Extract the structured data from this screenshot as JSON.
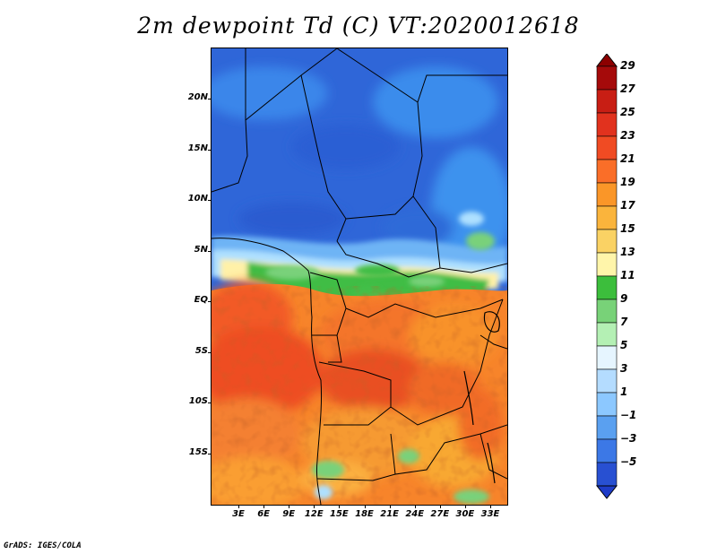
{
  "title": "2m dewpoint Td (C) VT:2020012618",
  "credit": "GrADS: IGES/COLA",
  "map": {
    "region": "Central Africa",
    "variable": "2m dewpoint",
    "units": "C",
    "valid_time": "2020012618",
    "lat_ticks": [
      {
        "label": "20N",
        "lat": 20
      },
      {
        "label": "15N",
        "lat": 15
      },
      {
        "label": "10N",
        "lat": 10
      },
      {
        "label": "5N",
        "lat": 5
      },
      {
        "label": "EQ",
        "lat": 0
      },
      {
        "label": "5S",
        "lat": -5
      },
      {
        "label": "10S",
        "lat": -10
      },
      {
        "label": "15S",
        "lat": -15
      }
    ],
    "lon_ticks": [
      {
        "label": "3E",
        "lon": 3
      },
      {
        "label": "6E",
        "lon": 6
      },
      {
        "label": "9E",
        "lon": 9
      },
      {
        "label": "12E",
        "lon": 12
      },
      {
        "label": "15E",
        "lon": 15
      },
      {
        "label": "18E",
        "lon": 18
      },
      {
        "label": "21E",
        "lon": 21
      },
      {
        "label": "24E",
        "lon": 24
      },
      {
        "label": "27E",
        "lon": 27
      },
      {
        "label": "30E",
        "lon": 30
      },
      {
        "label": "33E",
        "lon": 33
      }
    ]
  },
  "colorbar": {
    "levels": [
      {
        "label": "29",
        "value": 29,
        "color": "#a50a0a"
      },
      {
        "label": "27",
        "value": 27,
        "color": "#c81e14"
      },
      {
        "label": "25",
        "value": 25,
        "color": "#e1321e"
      },
      {
        "label": "23",
        "value": 23,
        "color": "#f04b23"
      },
      {
        "label": "21",
        "value": 21,
        "color": "#fa6e28"
      },
      {
        "label": "19",
        "value": 19,
        "color": "#fa9628"
      },
      {
        "label": "17",
        "value": 17,
        "color": "#fab43c"
      },
      {
        "label": "15",
        "value": 15,
        "color": "#fad264"
      },
      {
        "label": "13",
        "value": 13,
        "color": "#fff5aa"
      },
      {
        "label": "11",
        "value": 11,
        "color": "#3cbe3c"
      },
      {
        "label": "9",
        "value": 9,
        "color": "#78d278"
      },
      {
        "label": "7",
        "value": 7,
        "color": "#b4f0b4"
      },
      {
        "label": "5",
        "value": 5,
        "color": "#e6f5ff"
      },
      {
        "label": "3",
        "value": 3,
        "color": "#b4dcff"
      },
      {
        "label": "1",
        "value": 1,
        "color": "#8cc8ff"
      },
      {
        "label": "−1",
        "value": -1,
        "color": "#5aa0f0"
      },
      {
        "label": "−3",
        "value": -3,
        "color": "#3c78e6"
      },
      {
        "label": "−5",
        "value": -5,
        "color": "#2850d2"
      }
    ],
    "below_color": "#1e3cc8",
    "above_color": "#8c0000"
  }
}
